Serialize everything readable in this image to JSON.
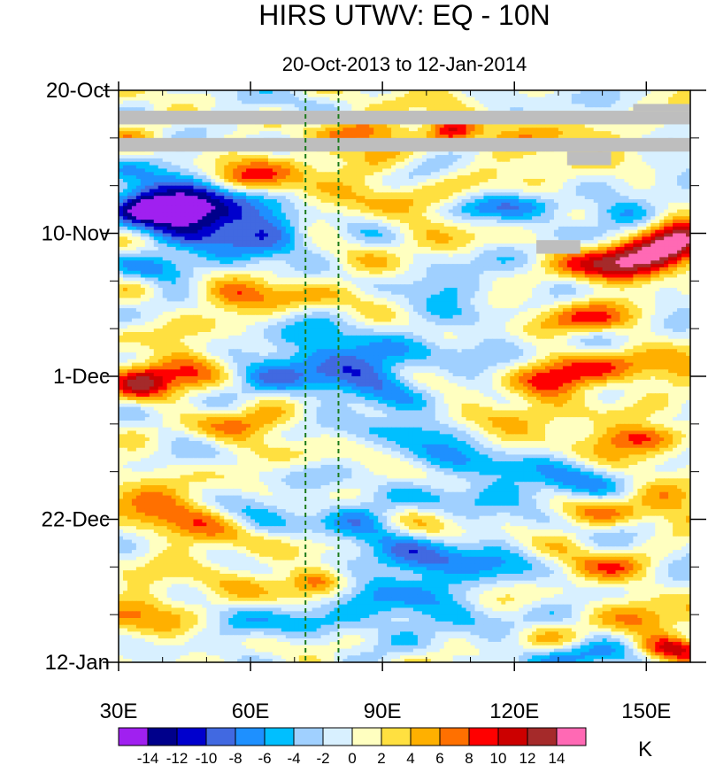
{
  "chart_data": {
    "type": "heatmap",
    "title": "HIRS UTWV: EQ - 10N",
    "subtitle": "20-Oct-2013 to 12-Jan-2014",
    "xlabel": "",
    "ylabel": "",
    "x_range_deg": [
      30,
      160
    ],
    "x_ticks": [
      {
        "value": 30,
        "label": "30E"
      },
      {
        "value": 60,
        "label": "60E"
      },
      {
        "value": 90,
        "label": "90E"
      },
      {
        "value": 120,
        "label": "120E"
      },
      {
        "value": 150,
        "label": "150E"
      }
    ],
    "y_range_days": [
      0,
      84
    ],
    "y_ticks": [
      {
        "day": 0,
        "label": "20-Oct"
      },
      {
        "day": 21,
        "label": "10-Nov"
      },
      {
        "day": 42,
        "label": "1-Dec"
      },
      {
        "day": 63,
        "label": "22-Dec"
      },
      {
        "day": 84,
        "label": "12-Jan"
      }
    ],
    "reference_longitudes": [
      72.5,
      80
    ],
    "missing_data": [
      {
        "day_start": 3.0,
        "day_end": 5.0,
        "lon_start": 30,
        "lon_end": 160
      },
      {
        "day_start": 7.0,
        "day_end": 9.0,
        "lon_start": 30,
        "lon_end": 160
      },
      {
        "day_start": 9.0,
        "day_end": 11.0,
        "lon_start": 132,
        "lon_end": 142
      },
      {
        "day_start": 22.0,
        "day_end": 24.0,
        "lon_start": 125,
        "lon_end": 135
      },
      {
        "day_start": 2.0,
        "day_end": 3.0,
        "lon_start": 147,
        "lon_end": 160
      }
    ],
    "colorbar": {
      "unit": "K",
      "levels": [
        -14,
        -12,
        -10,
        -8,
        -6,
        -4,
        -2,
        0,
        2,
        4,
        6,
        8,
        10,
        12,
        14
      ],
      "tick_labels": [
        "-14",
        "-12",
        "-10",
        "-8",
        "-6",
        "-4",
        "-2",
        "0",
        "2",
        "4",
        "6",
        "8",
        "10",
        "12",
        "14"
      ],
      "colors": [
        "#a020f0",
        "#00008b",
        "#0000cd",
        "#4169e1",
        "#1e90ff",
        "#00bfff",
        "#a0d0ff",
        "#d8f0ff",
        "#ffffc0",
        "#ffe040",
        "#ffb000",
        "#ff7000",
        "#ff0000",
        "#cc0000",
        "#a52a2a",
        "#ff69b4"
      ]
    },
    "anomaly_features": [
      {
        "lon": 48,
        "day": 19,
        "value": -13,
        "sx": 8,
        "sy": 3
      },
      {
        "lon": 42,
        "day": 16,
        "value": -9,
        "sx": 9,
        "sy": 2.5
      },
      {
        "lon": 35,
        "day": 17,
        "value": -6,
        "sx": 5,
        "sy": 2
      },
      {
        "lon": 65,
        "day": 21,
        "value": -6,
        "sx": 6,
        "sy": 3
      },
      {
        "lon": 40,
        "day": 26,
        "value": -7,
        "sx": 6,
        "sy": 1.5
      },
      {
        "lon": 55,
        "day": 30,
        "value": 5,
        "sx": 8,
        "sy": 1.5
      },
      {
        "lon": 57,
        "day": 13,
        "value": 6,
        "sx": 6,
        "sy": 1.5
      },
      {
        "lon": 80,
        "day": 12,
        "value": 4,
        "sx": 10,
        "sy": 3
      },
      {
        "lon": 86,
        "day": 6,
        "value": 6,
        "sx": 8,
        "sy": 1.5
      },
      {
        "lon": 106,
        "day": 6,
        "value": 10,
        "sx": 4,
        "sy": 1.5
      },
      {
        "lon": 128,
        "day": 7,
        "value": 6,
        "sx": 8,
        "sy": 2
      },
      {
        "lon": 100,
        "day": 16,
        "value": 4,
        "sx": 10,
        "sy": 2
      },
      {
        "lon": 118,
        "day": 17,
        "value": -6,
        "sx": 12,
        "sy": 1.5
      },
      {
        "lon": 145,
        "day": 18,
        "value": -6,
        "sx": 6,
        "sy": 1.5
      },
      {
        "lon": 150,
        "day": 24,
        "value": 10,
        "sx": 8,
        "sy": 2.5
      },
      {
        "lon": 140,
        "day": 26,
        "value": 7,
        "sx": 8,
        "sy": 2
      },
      {
        "lon": 157,
        "day": 22,
        "value": 8,
        "sx": 5,
        "sy": 2
      },
      {
        "lon": 80,
        "day": 30,
        "value": 4,
        "sx": 10,
        "sy": 1.5
      },
      {
        "lon": 110,
        "day": 29,
        "value": -5,
        "sx": 10,
        "sy": 1.5
      },
      {
        "lon": 135,
        "day": 34,
        "value": 6,
        "sx": 8,
        "sy": 1.5
      },
      {
        "lon": 76,
        "day": 40,
        "value": -8,
        "sx": 9,
        "sy": 4
      },
      {
        "lon": 92,
        "day": 42,
        "value": -6,
        "sx": 8,
        "sy": 3
      },
      {
        "lon": 110,
        "day": 38,
        "value": -4,
        "sx": 10,
        "sy": 2
      },
      {
        "lon": 35,
        "day": 43,
        "value": 10,
        "sx": 5,
        "sy": 2
      },
      {
        "lon": 45,
        "day": 40,
        "value": 5,
        "sx": 6,
        "sy": 3
      },
      {
        "lon": 128,
        "day": 42,
        "value": 10,
        "sx": 7,
        "sy": 2
      },
      {
        "lon": 145,
        "day": 41,
        "value": 7,
        "sx": 8,
        "sy": 2
      },
      {
        "lon": 120,
        "day": 48,
        "value": 4,
        "sx": 10,
        "sy": 1.5
      },
      {
        "lon": 150,
        "day": 51,
        "value": 10,
        "sx": 7,
        "sy": 1.5
      },
      {
        "lon": 60,
        "day": 49,
        "value": 4,
        "sx": 10,
        "sy": 1.5
      },
      {
        "lon": 95,
        "day": 50,
        "value": -5,
        "sx": 8,
        "sy": 1.5
      },
      {
        "lon": 112,
        "day": 55,
        "value": -6,
        "sx": 8,
        "sy": 2
      },
      {
        "lon": 130,
        "day": 58,
        "value": -5,
        "sx": 8,
        "sy": 2
      },
      {
        "lon": 100,
        "day": 60,
        "value": -4,
        "sx": 12,
        "sy": 2
      },
      {
        "lon": 80,
        "day": 63,
        "value": -5,
        "sx": 8,
        "sy": 2
      },
      {
        "lon": 36,
        "day": 60,
        "value": 5,
        "sx": 6,
        "sy": 2
      },
      {
        "lon": 45,
        "day": 64,
        "value": 5,
        "sx": 8,
        "sy": 3
      },
      {
        "lon": 140,
        "day": 62,
        "value": 5,
        "sx": 10,
        "sy": 1.5
      },
      {
        "lon": 155,
        "day": 59,
        "value": 4,
        "sx": 6,
        "sy": 1.5
      },
      {
        "lon": 95,
        "day": 69,
        "value": -6,
        "sx": 10,
        "sy": 2
      },
      {
        "lon": 115,
        "day": 70,
        "value": -5,
        "sx": 10,
        "sy": 2.5
      },
      {
        "lon": 75,
        "day": 72,
        "value": 9,
        "sx": 5,
        "sy": 1.5
      },
      {
        "lon": 140,
        "day": 70,
        "value": 5,
        "sx": 8,
        "sy": 1.5
      },
      {
        "lon": 88,
        "day": 76,
        "value": -6,
        "sx": 8,
        "sy": 3
      },
      {
        "lon": 105,
        "day": 78,
        "value": -5,
        "sx": 10,
        "sy": 2
      },
      {
        "lon": 40,
        "day": 75,
        "value": 4,
        "sx": 10,
        "sy": 3
      },
      {
        "lon": 60,
        "day": 78,
        "value": -3,
        "sx": 8,
        "sy": 2
      },
      {
        "lon": 125,
        "day": 80,
        "value": 4,
        "sx": 8,
        "sy": 2
      },
      {
        "lon": 152,
        "day": 77,
        "value": 5,
        "sx": 8,
        "sy": 2
      },
      {
        "lon": 155,
        "day": 82,
        "value": 9,
        "sx": 5,
        "sy": 1.2
      },
      {
        "lon": 130,
        "day": 83,
        "value": -6,
        "sx": 10,
        "sy": 1.5
      }
    ]
  }
}
